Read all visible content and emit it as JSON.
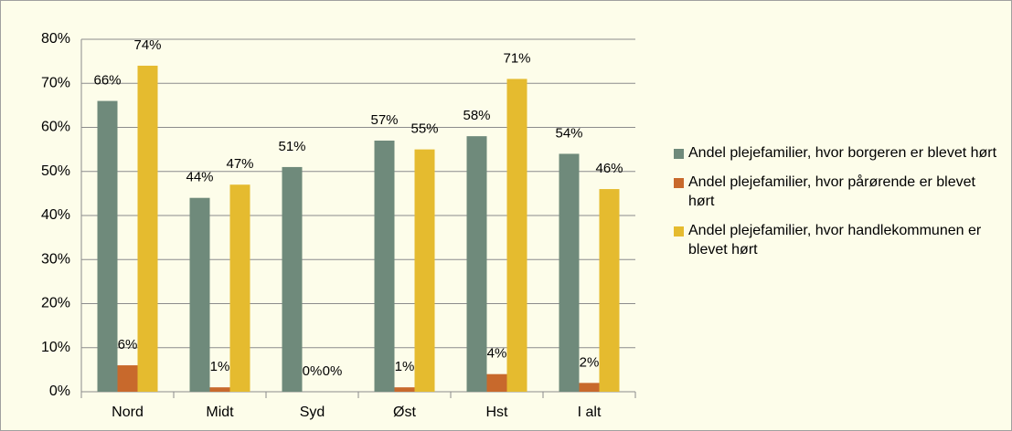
{
  "chart_data": {
    "type": "bar",
    "categories": [
      "Nord",
      "Midt",
      "Syd",
      "Øst",
      "Hst",
      "I alt"
    ],
    "series": [
      {
        "name": "Andel plejefamilier, hvor borgeren er blevet hørt",
        "color": "#6f8a7b",
        "values": [
          66,
          44,
          51,
          57,
          58,
          54
        ],
        "value_labels": [
          "66%",
          "44%",
          "51%",
          "57%",
          "58%",
          "54%"
        ]
      },
      {
        "name": "Andel plejefamilier, hvor pårørende er blevet hørt",
        "color": "#c8692c",
        "values": [
          6,
          1,
          0,
          1,
          4,
          2
        ],
        "value_labels": [
          "6%",
          "1%",
          "0%",
          "1%",
          "4%",
          "2%"
        ]
      },
      {
        "name": "Andel plejefamilier, hvor handlekommunen er blevet hørt",
        "color": "#e5bb2f",
        "values": [
          74,
          47,
          0,
          55,
          71,
          46
        ],
        "value_labels": [
          "74%",
          "47%",
          "0%",
          "55%",
          "71%",
          "46%"
        ]
      }
    ],
    "ylim": [
      0,
      80
    ],
    "yticks": [
      {
        "value": 0,
        "label": "0%"
      },
      {
        "value": 10,
        "label": "10%"
      },
      {
        "value": 20,
        "label": "20%"
      },
      {
        "value": 30,
        "label": "30%"
      },
      {
        "value": 40,
        "label": "40%"
      },
      {
        "value": 50,
        "label": "50%"
      },
      {
        "value": 60,
        "label": "60%"
      },
      {
        "value": 70,
        "label": "70%"
      },
      {
        "value": 80,
        "label": "80%"
      }
    ],
    "grid": true,
    "legend": "right"
  }
}
